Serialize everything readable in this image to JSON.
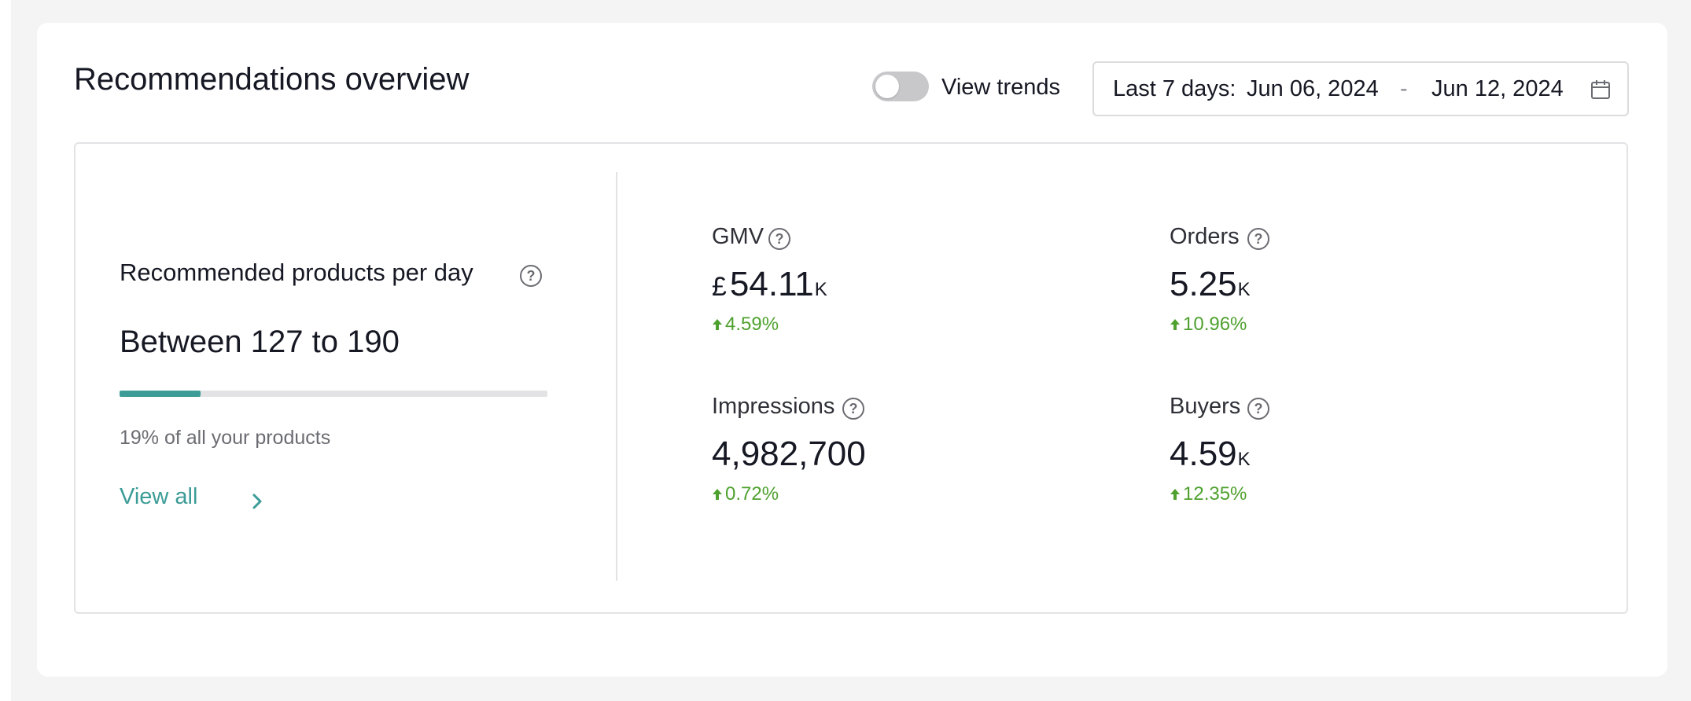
{
  "header": {
    "title": "Recommendations overview",
    "view_trends_label": "View trends",
    "view_trends_on": false
  },
  "date_range": {
    "prefix": "Last 7 days:",
    "start": "Jun 06, 2024",
    "separator": "-",
    "end": "Jun 12, 2024",
    "icon": "calendar-icon"
  },
  "recommended": {
    "label": "Recommended products per day",
    "value": "Between 127 to 190",
    "progress_percent": 19,
    "subtitle": "19% of all your products",
    "view_all_label": "View all"
  },
  "metrics": {
    "gmv": {
      "label": "GMV",
      "currency": "£",
      "value": "54.11",
      "unit": "K",
      "change": "4.59%"
    },
    "orders": {
      "label": "Orders",
      "value": "5.25",
      "unit": "K",
      "change": "10.96%"
    },
    "impressions": {
      "label": "Impressions",
      "value": "4,982,700",
      "change": "0.72%"
    },
    "buyers": {
      "label": "Buyers",
      "value": "4.59",
      "unit": "K",
      "change": "12.35%"
    }
  },
  "colors": {
    "accent": "#3c9c97",
    "positive": "#4ea12e",
    "toggle_off": "#c8c8cb"
  }
}
